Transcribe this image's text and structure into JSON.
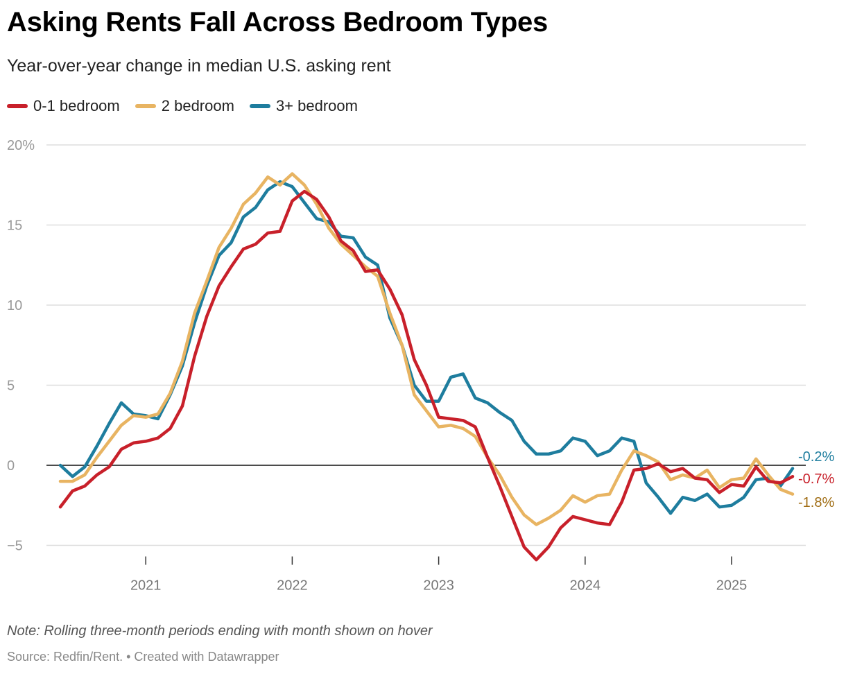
{
  "title": "Asking Rents Fall Across Bedroom Types",
  "subtitle": "Year-over-year change in median U.S. asking rent",
  "note": "Note: Rolling three-month periods ending with month shown on hover",
  "source": "Source: Redfin/Rent. • Created with Datawrapper",
  "chart_data": {
    "type": "line",
    "x_start": "2020-06",
    "x_end": "2025-06",
    "x_tick_labels": [
      "2021",
      "2022",
      "2023",
      "2024",
      "2025"
    ],
    "y_tick_labels": [
      "20%",
      "15",
      "10",
      "5",
      "0",
      "−5"
    ],
    "y_ticks": [
      20,
      15,
      10,
      5,
      0,
      -5
    ],
    "ylim": [
      -5,
      20
    ],
    "grid": true,
    "legend_position": "top-left",
    "series": [
      {
        "name": "0-1 bedroom",
        "color": "#c8202a",
        "label_color": "#c8202a",
        "end_label": "-0.7%",
        "values": [
          -2.6,
          -1.6,
          -1.3,
          -0.6,
          -0.1,
          1.0,
          1.4,
          1.5,
          1.7,
          2.3,
          3.7,
          6.8,
          9.3,
          11.2,
          12.4,
          13.5,
          13.8,
          14.5,
          14.6,
          16.5,
          17.1,
          16.6,
          15.5,
          14.0,
          13.4,
          12.1,
          12.2,
          11.0,
          9.4,
          6.6,
          5.0,
          3.0,
          2.9,
          2.8,
          2.4,
          0.5,
          -1.3,
          -3.2,
          -5.1,
          -5.9,
          -5.1,
          -3.9,
          -3.2,
          -3.4,
          -3.6,
          -3.7,
          -2.3,
          -0.3,
          -0.2,
          0.1,
          -0.4,
          -0.2,
          -0.8,
          -0.9,
          -1.7,
          -1.2,
          -1.3,
          -0.1,
          -1.0,
          -1.1,
          -0.7
        ]
      },
      {
        "name": "2 bedroom",
        "color": "#e8b462",
        "label_color": "#a06d14",
        "end_label": "-1.8%",
        "values": [
          -1.0,
          -1.0,
          -0.6,
          0.5,
          1.5,
          2.5,
          3.1,
          3.0,
          3.2,
          4.5,
          6.5,
          9.5,
          11.5,
          13.6,
          14.8,
          16.3,
          17.0,
          18.0,
          17.5,
          18.2,
          17.5,
          16.3,
          14.8,
          13.8,
          13.1,
          12.4,
          11.8,
          9.5,
          7.5,
          4.4,
          3.4,
          2.4,
          2.5,
          2.3,
          1.8,
          0.5,
          -0.6,
          -2.0,
          -3.1,
          -3.7,
          -3.3,
          -2.8,
          -1.9,
          -2.3,
          -1.9,
          -1.8,
          -0.3,
          0.9,
          0.6,
          0.2,
          -0.9,
          -0.6,
          -0.8,
          -0.3,
          -1.4,
          -0.9,
          -0.8,
          0.4,
          -0.6,
          -1.5,
          -1.8
        ]
      },
      {
        "name": "3+ bedroom",
        "color": "#1e7d9e",
        "label_color": "#1e7d9e",
        "end_label": "-0.2%",
        "values": [
          0.0,
          -0.7,
          -0.1,
          1.2,
          2.6,
          3.9,
          3.2,
          3.1,
          2.9,
          4.4,
          6.2,
          8.9,
          11.2,
          13.1,
          13.9,
          15.5,
          16.1,
          17.2,
          17.7,
          17.4,
          16.4,
          15.4,
          15.2,
          14.3,
          14.2,
          13.0,
          12.5,
          9.2,
          7.5,
          5.0,
          4.0,
          4.0,
          5.5,
          5.7,
          4.2,
          3.9,
          3.3,
          2.8,
          1.5,
          0.7,
          0.7,
          0.9,
          1.7,
          1.5,
          0.6,
          0.9,
          1.7,
          1.5,
          -1.1,
          -2.0,
          -3.0,
          -2.0,
          -2.2,
          -1.8,
          -2.6,
          -2.5,
          -2.0,
          -0.9,
          -0.8,
          -1.3,
          -0.2
        ]
      }
    ]
  }
}
